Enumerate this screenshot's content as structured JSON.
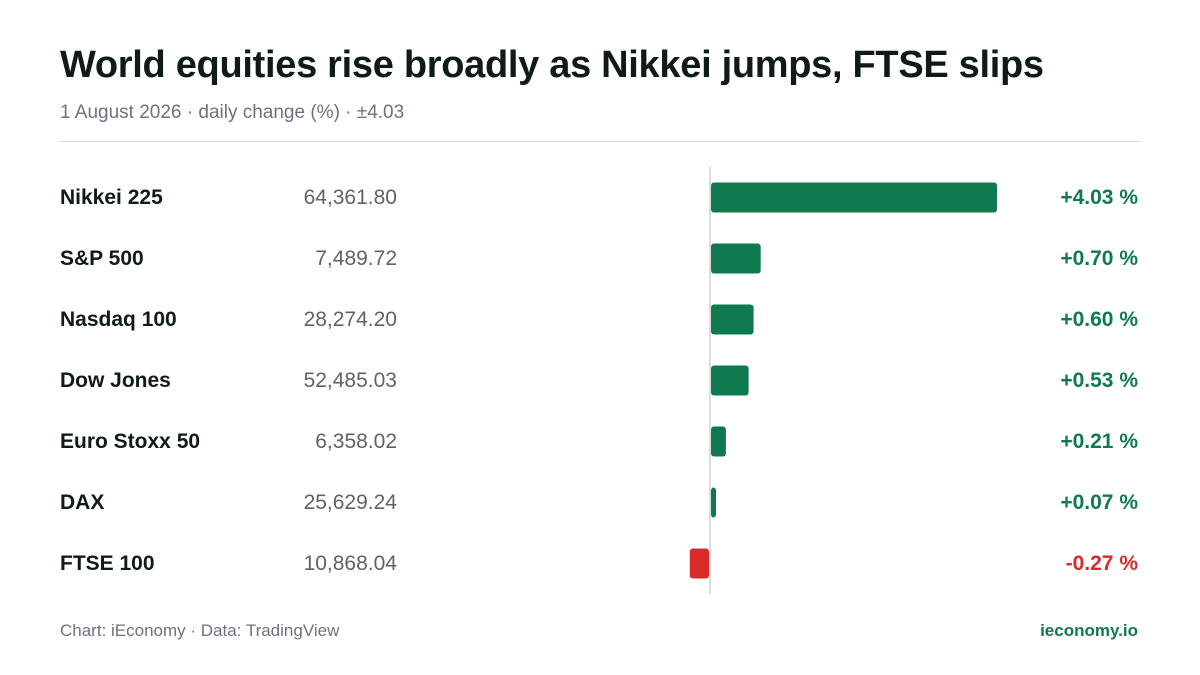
{
  "title": "World equities rise broadly as Nikkei jumps, FTSE slips",
  "subtitle": "1 August 2026 · daily change (%) · ±4.03",
  "colors": {
    "positive": "#0f7a4f",
    "negative": "#d92b2b",
    "axis": "#d9dde1"
  },
  "chart_data": {
    "type": "bar",
    "orientation": "horizontal",
    "categories": [
      "Nikkei 225",
      "S&P 500",
      "Nasdaq 100",
      "Dow Jones",
      "Euro Stoxx 50",
      "DAX",
      "FTSE 100"
    ],
    "index_levels": [
      "64,361.80",
      "7,489.72",
      "28,274.20",
      "52,485.03",
      "6,358.02",
      "25,629.24",
      "10,868.04"
    ],
    "values": [
      4.03,
      0.7,
      0.6,
      0.53,
      0.21,
      0.07,
      -0.27
    ],
    "value_labels": [
      "+4.03 %",
      "+0.70 %",
      "+0.60 %",
      "+0.53 %",
      "+0.21 %",
      "+0.07 %",
      "-0.27 %"
    ],
    "xlim": [
      -4.03,
      4.03
    ],
    "grid": false,
    "legend": "none"
  },
  "footer": {
    "source": "Chart: iEconomy · Data: TradingView",
    "brand": "ieconomy.io"
  }
}
